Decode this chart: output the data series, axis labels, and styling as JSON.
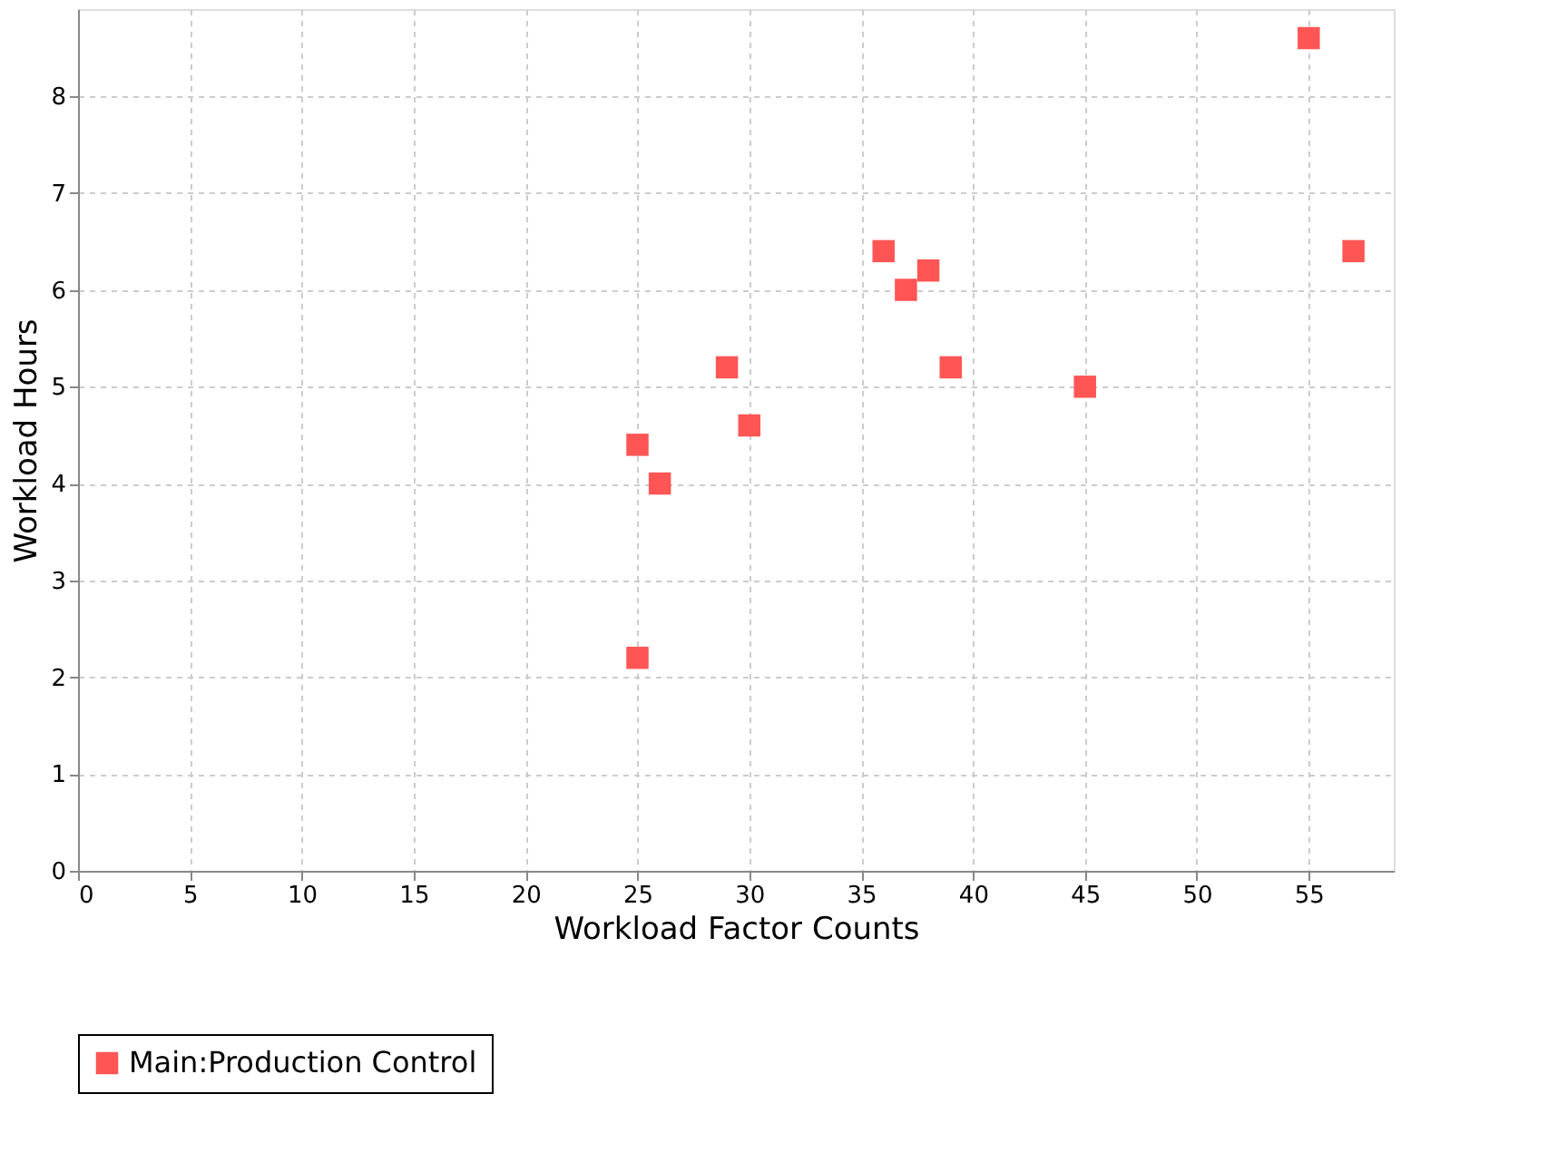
{
  "chart_data": {
    "type": "scatter",
    "xlabel": "Workload Factor Counts",
    "ylabel": "Workload Hours",
    "x": [
      25,
      25,
      26,
      29,
      30,
      36,
      37,
      38,
      39,
      45,
      55,
      57
    ],
    "series": [
      {
        "name": "Main:Production Control",
        "color": "#ff5555",
        "values": [
          2.2,
          4.4,
          4.0,
          5.2,
          4.6,
          6.4,
          6.0,
          6.2,
          5.2,
          5.0,
          8.6,
          6.4
        ]
      }
    ],
    "xlim": [
      0,
      58.8
    ],
    "xticks": [
      0,
      5,
      10,
      15,
      20,
      25,
      30,
      35,
      40,
      45,
      50,
      55
    ],
    "ylim": [
      0,
      8.9
    ],
    "yticks": [
      0,
      1,
      2,
      3,
      4,
      5,
      6,
      7,
      8
    ],
    "grid": true,
    "legend": "bottom",
    "marker": "square"
  }
}
